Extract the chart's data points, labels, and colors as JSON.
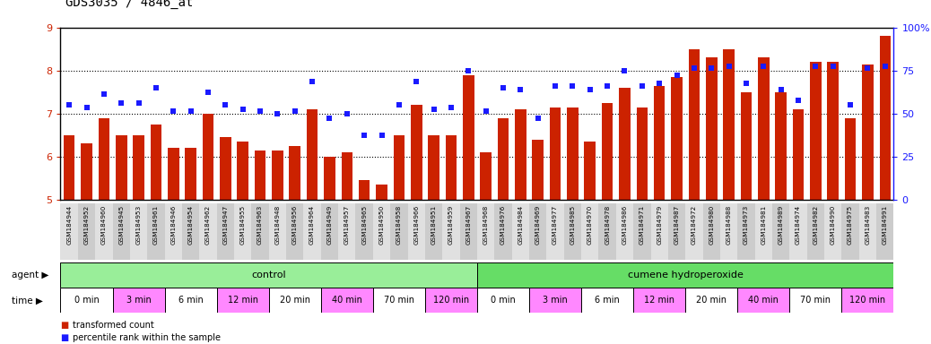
{
  "title": "GDS3035 / 4846_at",
  "samples": [
    "GSM184944",
    "GSM184952",
    "GSM184960",
    "GSM184945",
    "GSM184953",
    "GSM184961",
    "GSM184946",
    "GSM184954",
    "GSM184962",
    "GSM184947",
    "GSM184955",
    "GSM184963",
    "GSM184948",
    "GSM184956",
    "GSM184964",
    "GSM184949",
    "GSM184957",
    "GSM184965",
    "GSM184950",
    "GSM184958",
    "GSM184966",
    "GSM184951",
    "GSM184959",
    "GSM184967",
    "GSM184968",
    "GSM184976",
    "GSM184984",
    "GSM184969",
    "GSM184977",
    "GSM184985",
    "GSM184970",
    "GSM184978",
    "GSM184986",
    "GSM184971",
    "GSM184979",
    "GSM184987",
    "GSM184972",
    "GSM184980",
    "GSM184988",
    "GSM184973",
    "GSM184981",
    "GSM184989",
    "GSM184974",
    "GSM184982",
    "GSM184990",
    "GSM184975",
    "GSM184983",
    "GSM184991"
  ],
  "bar_values": [
    6.5,
    6.3,
    6.9,
    6.5,
    6.5,
    6.75,
    6.2,
    6.2,
    7.0,
    6.45,
    6.35,
    6.15,
    6.15,
    6.25,
    7.1,
    6.0,
    6.1,
    5.45,
    5.35,
    6.5,
    7.2,
    6.5,
    6.5,
    7.9,
    6.1,
    6.9,
    7.1,
    6.4,
    7.15,
    7.15,
    6.35,
    7.25,
    7.6,
    7.15,
    7.65,
    7.85,
    8.5,
    8.3,
    8.5,
    7.5,
    8.3,
    7.5,
    7.1,
    8.2,
    8.2,
    6.9,
    8.15,
    8.8
  ],
  "scatter_values": [
    7.2,
    7.15,
    7.45,
    7.25,
    7.25,
    7.6,
    7.05,
    7.05,
    7.5,
    7.2,
    7.1,
    7.05,
    7.0,
    7.05,
    7.75,
    6.9,
    7.0,
    6.5,
    6.5,
    7.2,
    7.75,
    7.1,
    7.15,
    8.0,
    7.05,
    7.6,
    7.55,
    6.9,
    7.65,
    7.65,
    7.55,
    7.65,
    8.0,
    7.65,
    7.7,
    7.9,
    8.05,
    8.05,
    8.1,
    7.7,
    8.1,
    7.55,
    7.3,
    8.1,
    8.1,
    7.2,
    8.05,
    8.1
  ],
  "ylim": [
    5,
    9
  ],
  "yticks": [
    5,
    6,
    7,
    8,
    9
  ],
  "y2ticks_val": [
    0,
    25,
    50,
    75,
    100
  ],
  "y2labels": [
    "0",
    "25",
    "50",
    "75",
    "100%"
  ],
  "bar_color": "#cc2200",
  "scatter_color": "#1a1aff",
  "agent_groups": [
    {
      "label": "control",
      "start": 0,
      "end": 24,
      "color": "#99ee99"
    },
    {
      "label": "cumene hydroperoxide",
      "start": 24,
      "end": 48,
      "color": "#66dd66"
    }
  ],
  "time_groups": [
    {
      "label": "0 min",
      "start": 0,
      "end": 3,
      "color": "#ffffff"
    },
    {
      "label": "3 min",
      "start": 3,
      "end": 6,
      "color": "#ff88ff"
    },
    {
      "label": "6 min",
      "start": 6,
      "end": 9,
      "color": "#ffffff"
    },
    {
      "label": "12 min",
      "start": 9,
      "end": 12,
      "color": "#ff88ff"
    },
    {
      "label": "20 min",
      "start": 12,
      "end": 15,
      "color": "#ffffff"
    },
    {
      "label": "40 min",
      "start": 15,
      "end": 18,
      "color": "#ff88ff"
    },
    {
      "label": "70 min",
      "start": 18,
      "end": 21,
      "color": "#ffffff"
    },
    {
      "label": "120 min",
      "start": 21,
      "end": 24,
      "color": "#ff88ff"
    },
    {
      "label": "0 min",
      "start": 24,
      "end": 27,
      "color": "#ffffff"
    },
    {
      "label": "3 min",
      "start": 27,
      "end": 30,
      "color": "#ff88ff"
    },
    {
      "label": "6 min",
      "start": 30,
      "end": 33,
      "color": "#ffffff"
    },
    {
      "label": "12 min",
      "start": 33,
      "end": 36,
      "color": "#ff88ff"
    },
    {
      "label": "20 min",
      "start": 36,
      "end": 39,
      "color": "#ffffff"
    },
    {
      "label": "40 min",
      "start": 39,
      "end": 42,
      "color": "#ff88ff"
    },
    {
      "label": "70 min",
      "start": 42,
      "end": 45,
      "color": "#ffffff"
    },
    {
      "label": "120 min",
      "start": 45,
      "end": 48,
      "color": "#ff88ff"
    }
  ]
}
